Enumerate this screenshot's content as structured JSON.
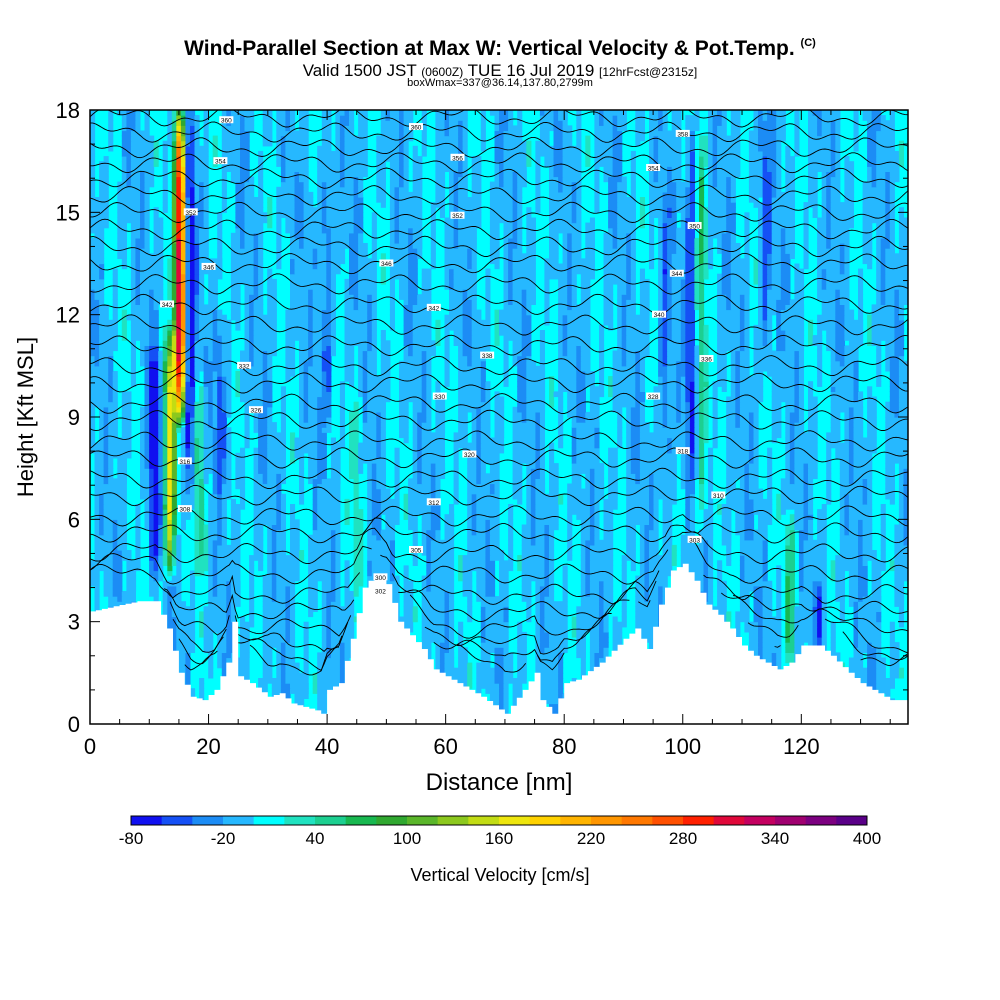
{
  "chart_data": {
    "type": "heatmap",
    "title": "Wind-Parallel Section at Max W: Vertical Velocity & Pot.Temp.",
    "title_mark": "(C)",
    "subtitle": {
      "prefix": "Valid 1500 JST",
      "zulu": "(0600Z)",
      "date": "TUE 16 Jul 2019",
      "forecast": "[12hrFcst@2315z]"
    },
    "subtitle2": "boxWmax=337@36.14,137.80,2799m",
    "xlabel": "Distance [nm]",
    "ylabel": "Height [Kft MSL]",
    "xlim": [
      0,
      138
    ],
    "ylim": [
      0,
      18
    ],
    "xticks": [
      0,
      20,
      40,
      60,
      80,
      100,
      120
    ],
    "yticks": [
      0,
      3,
      6,
      9,
      12,
      15,
      18
    ],
    "colorbar": {
      "label": "Vertical Velocity [cm/s]",
      "tick_labels": [
        "-80",
        "-20",
        "40",
        "100",
        "160",
        "220",
        "280",
        "340",
        "400"
      ],
      "levels": [
        -80,
        -60,
        -40,
        -20,
        0,
        20,
        40,
        60,
        80,
        100,
        120,
        140,
        160,
        180,
        200,
        220,
        240,
        260,
        280,
        300,
        320,
        340,
        360,
        380,
        400
      ],
      "colors": [
        "#1010f0",
        "#1550f5",
        "#1c8cf5",
        "#26b8ff",
        "#00ffff",
        "#20e2c0",
        "#1ccf90",
        "#18b850",
        "#30a830",
        "#5ab62a",
        "#8cc81e",
        "#c2dc14",
        "#eee60e",
        "#ffd200",
        "#ffb400",
        "#ff9600",
        "#ff7800",
        "#ff5000",
        "#ff2000",
        "#e0083a",
        "#c40060",
        "#a00070",
        "#7c0080",
        "#5a0088"
      ]
    },
    "terrain_kft": [
      [
        0,
        3.3
      ],
      [
        8,
        3.6
      ],
      [
        11,
        3.6
      ],
      [
        13,
        2.8
      ],
      [
        15,
        1.5
      ],
      [
        17,
        0.8
      ],
      [
        19,
        0.7
      ],
      [
        21,
        1.0
      ],
      [
        23,
        1.8
      ],
      [
        24,
        3.0
      ],
      [
        25,
        1.4
      ],
      [
        27,
        1.2
      ],
      [
        30,
        0.8
      ],
      [
        32,
        0.9
      ],
      [
        34,
        0.6
      ],
      [
        36,
        0.5
      ],
      [
        38,
        0.4
      ],
      [
        39,
        0.3
      ],
      [
        40,
        1.0
      ],
      [
        42,
        1.2
      ],
      [
        44,
        2.5
      ],
      [
        46,
        4.0
      ],
      [
        48,
        4.4
      ],
      [
        50,
        4.1
      ],
      [
        52,
        3.0
      ],
      [
        54,
        2.6
      ],
      [
        56,
        2.2
      ],
      [
        58,
        1.6
      ],
      [
        60,
        1.4
      ],
      [
        62,
        1.2
      ],
      [
        66,
        0.8
      ],
      [
        70,
        0.3
      ],
      [
        73,
        1.0
      ],
      [
        75,
        1.5
      ],
      [
        76,
        0.7
      ],
      [
        78,
        0.3
      ],
      [
        80,
        1.2
      ],
      [
        82,
        1.3
      ],
      [
        86,
        1.8
      ],
      [
        90,
        2.5
      ],
      [
        92,
        2.8
      ],
      [
        94,
        2.2
      ],
      [
        96,
        3.5
      ],
      [
        98,
        4.5
      ],
      [
        100,
        4.7
      ],
      [
        102,
        4.2
      ],
      [
        104,
        3.5
      ],
      [
        106,
        3.2
      ],
      [
        108,
        2.8
      ],
      [
        110,
        2.3
      ],
      [
        112,
        2.0
      ],
      [
        114,
        1.8
      ],
      [
        116,
        1.6
      ],
      [
        118,
        1.8
      ],
      [
        120,
        2.3
      ],
      [
        123,
        2.3
      ],
      [
        125,
        2.0
      ],
      [
        128,
        1.5
      ],
      [
        130,
        1.2
      ],
      [
        132,
        1.0
      ],
      [
        135,
        0.7
      ],
      [
        138,
        0.7
      ]
    ],
    "theta_contour_heights_kft": [
      17.8,
      17.35,
      16.9,
      16.45,
      16.0,
      15.5,
      15.0,
      14.5,
      14.0,
      13.5,
      12.9,
      12.3,
      11.7,
      11.1,
      10.5,
      10.0,
      9.4,
      8.9,
      8.3,
      7.8,
      7.2,
      6.7,
      6.1,
      5.6,
      5.0,
      4.4,
      3.8,
      3.3,
      2.8,
      2.3,
      1.8,
      1.3
    ],
    "theta_labels": [
      {
        "x": 23,
        "y": 17.7,
        "text": "360"
      },
      {
        "x": 55,
        "y": 17.5,
        "text": "360"
      },
      {
        "x": 100,
        "y": 17.3,
        "text": "358"
      },
      {
        "x": 22,
        "y": 16.5,
        "text": "354"
      },
      {
        "x": 62,
        "y": 16.6,
        "text": "356"
      },
      {
        "x": 95,
        "y": 16.3,
        "text": "354"
      },
      {
        "x": 17,
        "y": 15.0,
        "text": "352"
      },
      {
        "x": 62,
        "y": 14.9,
        "text": "352"
      },
      {
        "x": 102,
        "y": 14.6,
        "text": "350"
      },
      {
        "x": 20,
        "y": 13.4,
        "text": "346"
      },
      {
        "x": 50,
        "y": 13.5,
        "text": "346"
      },
      {
        "x": 99,
        "y": 13.2,
        "text": "344"
      },
      {
        "x": 13,
        "y": 12.3,
        "text": "342"
      },
      {
        "x": 58,
        "y": 12.2,
        "text": "342"
      },
      {
        "x": 96,
        "y": 12.0,
        "text": "340"
      },
      {
        "x": 67,
        "y": 10.8,
        "text": "338"
      },
      {
        "x": 104,
        "y": 10.7,
        "text": "336"
      },
      {
        "x": 26,
        "y": 10.5,
        "text": "332"
      },
      {
        "x": 59,
        "y": 9.6,
        "text": "330"
      },
      {
        "x": 95,
        "y": 9.6,
        "text": "328"
      },
      {
        "x": 28,
        "y": 9.2,
        "text": "326"
      },
      {
        "x": 64,
        "y": 7.9,
        "text": "320"
      },
      {
        "x": 100,
        "y": 8.0,
        "text": "318"
      },
      {
        "x": 16,
        "y": 7.7,
        "text": "316"
      },
      {
        "x": 58,
        "y": 6.5,
        "text": "312"
      },
      {
        "x": 106,
        "y": 6.7,
        "text": "310"
      },
      {
        "x": 16,
        "y": 6.3,
        "text": "308"
      },
      {
        "x": 55,
        "y": 5.1,
        "text": "305"
      },
      {
        "x": 102,
        "y": 5.4,
        "text": "303"
      },
      {
        "x": 49,
        "y": 4.3,
        "text": "300"
      },
      {
        "x": 49,
        "y": 3.9,
        "text": "302"
      }
    ],
    "updraft_cores": [
      {
        "x": 13.5,
        "y_min": 4.5,
        "y_max": 11.5,
        "w_cms": 180
      },
      {
        "x": 15.2,
        "y_min": 9.0,
        "y_max": 18.0,
        "w_cms": 337
      },
      {
        "x": 18.5,
        "y_min": 4.5,
        "y_max": 10.0,
        "w_cms": 60
      },
      {
        "x": 45,
        "y_min": 4.0,
        "y_max": 10.0,
        "w_cms": 30
      },
      {
        "x": 103,
        "y_min": 5.5,
        "y_max": 18.0,
        "w_cms": 60
      },
      {
        "x": 118,
        "y_min": 2.0,
        "y_max": 6.0,
        "w_cms": 60
      }
    ],
    "downdraft_cores": [
      {
        "x": 10.8,
        "y_min": 4.5,
        "y_max": 11.0,
        "w_cms": -80
      },
      {
        "x": 16.8,
        "y_min": 6.0,
        "y_max": 18.0,
        "w_cms": -80
      },
      {
        "x": 22,
        "y_min": 7.0,
        "y_max": 12.0,
        "w_cms": -40
      },
      {
        "x": 40,
        "y_min": 9.0,
        "y_max": 17.0,
        "w_cms": -40
      },
      {
        "x": 97,
        "y_min": 6.0,
        "y_max": 16.0,
        "w_cms": -40
      },
      {
        "x": 101.5,
        "y_min": 7.0,
        "y_max": 18.0,
        "w_cms": -60
      },
      {
        "x": 114,
        "y_min": 10.0,
        "y_max": 18.0,
        "w_cms": -40
      },
      {
        "x": 123,
        "y_min": 2.5,
        "y_max": 3.8,
        "w_cms": -40
      }
    ]
  }
}
